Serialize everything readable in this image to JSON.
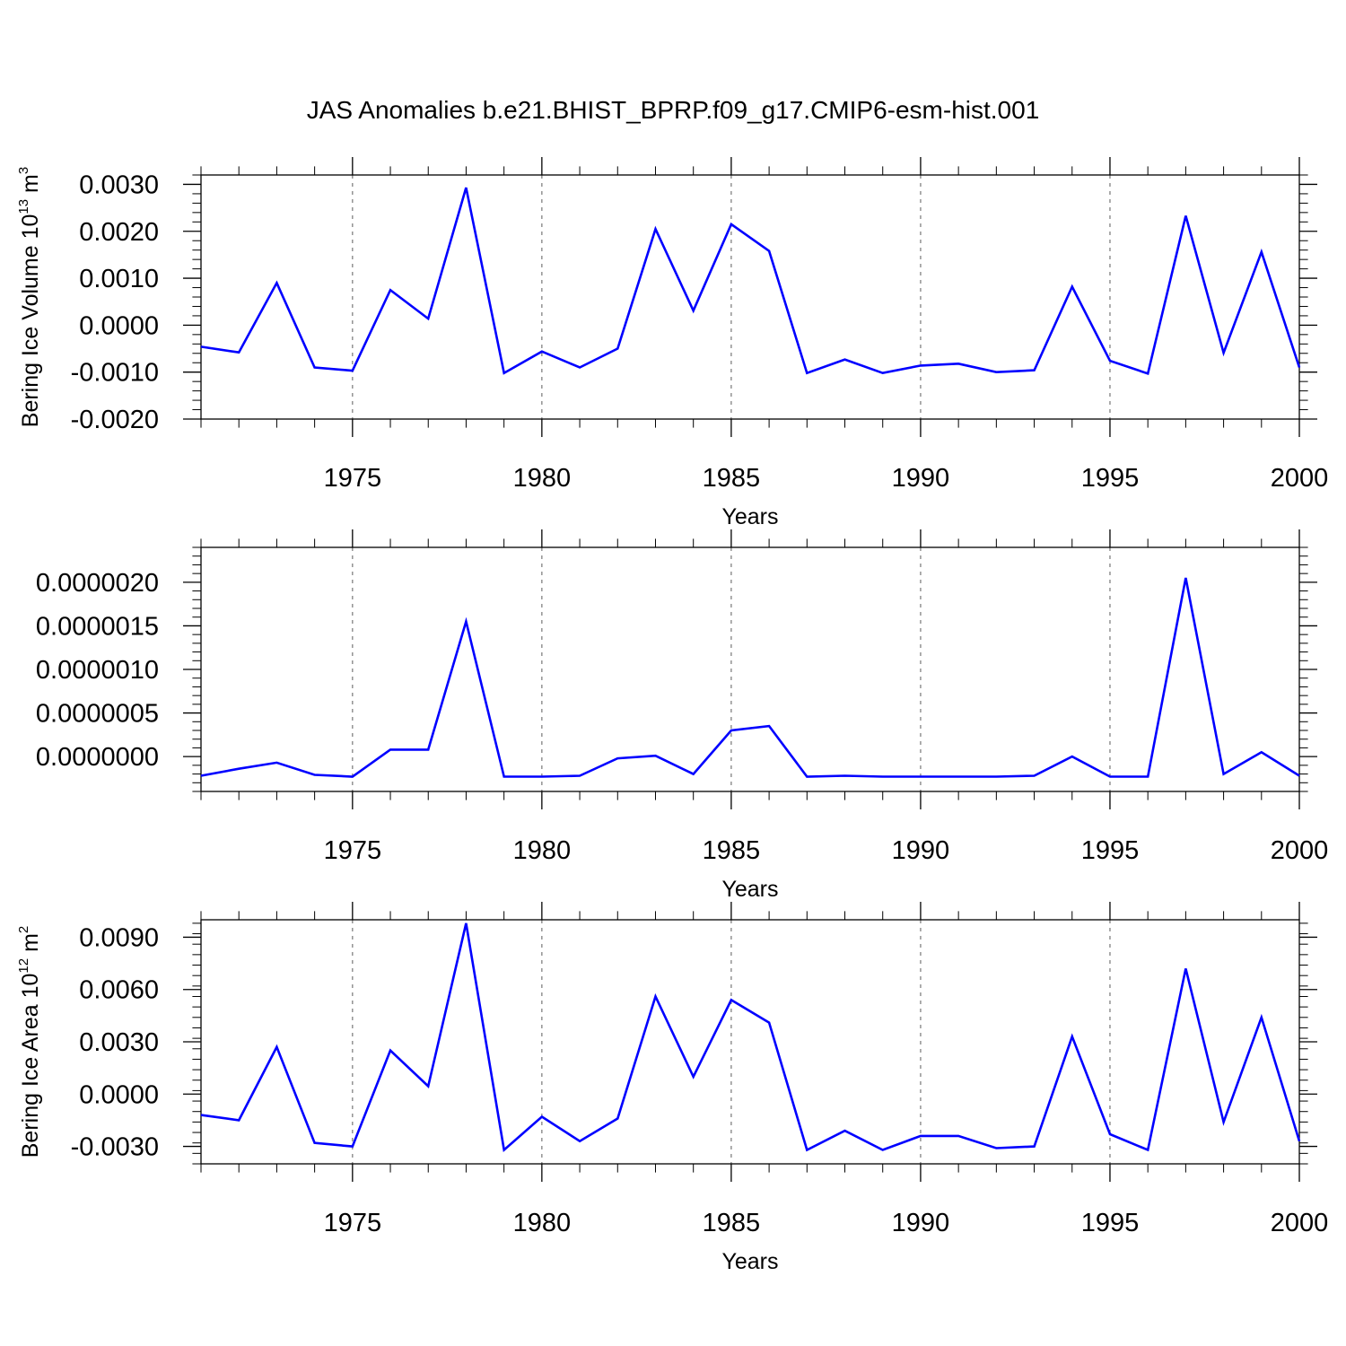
{
  "title": "JAS Anomalies b.e21.BHIST_BPRP.f09_g17.CMIP6-esm-hist.001",
  "colors": {
    "line": "#0000ff",
    "axis": "#000000",
    "grid": "#777777"
  },
  "chart_data": [
    {
      "type": "line",
      "xlabel": "Years",
      "ylabel": "Bering Ice Volume 10",
      "ylabel_sup": "13",
      "ylabel_unit": " m",
      "ylabel_unit_sup": "3",
      "xlim": [
        1971,
        2000
      ],
      "ylim": [
        -0.002,
        0.0032
      ],
      "yticks": [
        -0.002,
        -0.001,
        0.0,
        0.001,
        0.002,
        0.003
      ],
      "ytick_labels": [
        "-0.0020",
        "-0.0010",
        "0.0000",
        "0.0010",
        "0.0020",
        "0.0030"
      ],
      "xticks": [
        1975,
        1980,
        1985,
        1990,
        1995,
        2000
      ],
      "xtick_labels": [
        "1975",
        "1980",
        "1985",
        "1990",
        "1995",
        "2000"
      ],
      "x": [
        1971,
        1972,
        1973,
        1974,
        1975,
        1976,
        1977,
        1978,
        1979,
        1980,
        1981,
        1982,
        1983,
        1984,
        1985,
        1986,
        1987,
        1988,
        1989,
        1990,
        1991,
        1992,
        1993,
        1994,
        1995,
        1996,
        1997,
        1998,
        1999,
        2000
      ],
      "series": [
        {
          "values": [
            -0.00046,
            -0.00058,
            0.0009,
            -0.0009,
            -0.00097,
            0.00075,
            0.00014,
            0.00293,
            -0.00102,
            -0.00056,
            -0.0009,
            -0.0005,
            0.00205,
            0.00031,
            0.00215,
            0.00158,
            -0.00102,
            -0.00073,
            -0.00102,
            -0.00086,
            -0.00082,
            -0.001,
            -0.00096,
            0.00082,
            -0.00076,
            -0.00103,
            0.00233,
            -0.00059,
            0.00156,
            -0.0009
          ]
        }
      ],
      "grid": "vertical dashed at major x ticks"
    },
    {
      "type": "line",
      "xlabel": "Years",
      "ylabel": "",
      "xlim": [
        1971,
        2000
      ],
      "ylim": [
        -4e-07,
        2.4e-06
      ],
      "yticks": [
        0.0,
        5e-07,
        1e-06,
        1.5e-06,
        2e-06
      ],
      "ytick_labels": [
        "0.0000000",
        "0.0000005",
        "0.0000010",
        "0.0000015",
        "0.0000020"
      ],
      "xticks": [
        1975,
        1980,
        1985,
        1990,
        1995,
        2000
      ],
      "xtick_labels": [
        "1975",
        "1980",
        "1985",
        "1990",
        "1995",
        "2000"
      ],
      "x": [
        1971,
        1972,
        1973,
        1974,
        1975,
        1976,
        1977,
        1978,
        1979,
        1980,
        1981,
        1982,
        1983,
        1984,
        1985,
        1986,
        1987,
        1988,
        1989,
        1990,
        1991,
        1992,
        1993,
        1994,
        1995,
        1996,
        1997,
        1998,
        1999,
        2000
      ],
      "series": [
        {
          "values": [
            -2.2e-07,
            -1.4e-07,
            -7e-08,
            -2.1e-07,
            -2.3e-07,
            8e-08,
            8e-08,
            1.55e-06,
            -2.3e-07,
            -2.3e-07,
            -2.2e-07,
            -2e-08,
            1e-08,
            -2e-07,
            3e-07,
            3.5e-07,
            -2.3e-07,
            -2.2e-07,
            -2.3e-07,
            -2.3e-07,
            -2.3e-07,
            -2.3e-07,
            -2.2e-07,
            0.0,
            -2.3e-07,
            -2.3e-07,
            2.05e-06,
            -2e-07,
            5e-08,
            -2.2e-07
          ]
        }
      ],
      "grid": "vertical dashed at major x ticks"
    },
    {
      "type": "line",
      "xlabel": "Years",
      "ylabel": "Bering Ice Area 10",
      "ylabel_sup": "12",
      "ylabel_unit": " m",
      "ylabel_unit_sup": "2",
      "xlim": [
        1971,
        2000
      ],
      "ylim": [
        -0.004,
        0.01
      ],
      "yticks": [
        -0.003,
        0.0,
        0.003,
        0.006,
        0.009
      ],
      "ytick_labels": [
        "-0.0030",
        "0.0000",
        "0.0030",
        "0.0060",
        "0.0090"
      ],
      "xticks": [
        1975,
        1980,
        1985,
        1990,
        1995,
        2000
      ],
      "xtick_labels": [
        "1975",
        "1980",
        "1985",
        "1990",
        "1995",
        "2000"
      ],
      "x": [
        1971,
        1972,
        1973,
        1974,
        1975,
        1976,
        1977,
        1978,
        1979,
        1980,
        1981,
        1982,
        1983,
        1984,
        1985,
        1986,
        1987,
        1988,
        1989,
        1990,
        1991,
        1992,
        1993,
        1994,
        1995,
        1996,
        1997,
        1998,
        1999,
        2000
      ],
      "series": [
        {
          "values": [
            -0.0012,
            -0.0015,
            0.0027,
            -0.0028,
            -0.003,
            0.0025,
            0.00045,
            0.0098,
            -0.0032,
            -0.0013,
            -0.0027,
            -0.0014,
            0.0056,
            0.001,
            0.0054,
            0.0041,
            -0.0032,
            -0.0021,
            -0.0032,
            -0.0024,
            -0.0024,
            -0.0031,
            -0.003,
            0.0033,
            -0.0023,
            -0.0032,
            0.0072,
            -0.0016,
            0.0044,
            -0.0027
          ]
        }
      ],
      "grid": "vertical dashed at major x ticks"
    }
  ]
}
